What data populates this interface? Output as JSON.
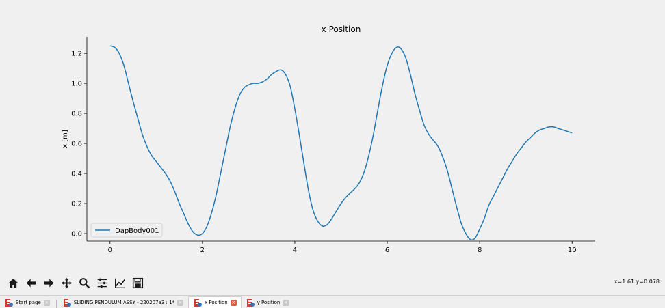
{
  "chart_data": {
    "type": "line",
    "title": "x Position",
    "xlabel": "",
    "ylabel": "x [m]",
    "xlim": [
      -0.5,
      10.5
    ],
    "ylim": [
      -0.05,
      1.31
    ],
    "xticks": [
      0,
      2,
      4,
      6,
      8,
      10
    ],
    "yticks": [
      0.0,
      0.2,
      0.4,
      0.6,
      0.8,
      1.0,
      1.2
    ],
    "ytick_labels": [
      "0.0",
      "0.2",
      "0.4",
      "0.6",
      "0.8",
      "1.0",
      "1.2"
    ],
    "grid": false,
    "legend_position": "bottom-left",
    "series": [
      {
        "name": "DapBody001",
        "color": "#1f77b4",
        "x": [
          0,
          0.1,
          0.2,
          0.3,
          0.4,
          0.5,
          0.6,
          0.7,
          0.8,
          0.9,
          1.0,
          1.1,
          1.2,
          1.3,
          1.4,
          1.5,
          1.6,
          1.7,
          1.8,
          1.9,
          2.0,
          2.1,
          2.2,
          2.3,
          2.4,
          2.5,
          2.6,
          2.7,
          2.8,
          2.9,
          3.0,
          3.1,
          3.2,
          3.3,
          3.4,
          3.5,
          3.6,
          3.7,
          3.8,
          3.9,
          4.0,
          4.1,
          4.2,
          4.3,
          4.4,
          4.5,
          4.6,
          4.7,
          4.8,
          4.9,
          5.0,
          5.1,
          5.2,
          5.3,
          5.4,
          5.5,
          5.6,
          5.7,
          5.8,
          5.9,
          6.0,
          6.1,
          6.2,
          6.3,
          6.4,
          6.5,
          6.6,
          6.7,
          6.8,
          6.9,
          7.0,
          7.1,
          7.2,
          7.3,
          7.4,
          7.5,
          7.6,
          7.7,
          7.8,
          7.9,
          8.0,
          8.1,
          8.2,
          8.3,
          8.4,
          8.5,
          8.6,
          8.7,
          8.8,
          8.9,
          9.0,
          9.1,
          9.2,
          9.3,
          9.4,
          9.5,
          9.6,
          9.7,
          9.8,
          9.9,
          10.0
        ],
        "y": [
          1.25,
          1.24,
          1.2,
          1.12,
          1.0,
          0.88,
          0.77,
          0.66,
          0.58,
          0.52,
          0.48,
          0.44,
          0.4,
          0.35,
          0.28,
          0.2,
          0.13,
          0.06,
          0.01,
          -0.01,
          0.0,
          0.05,
          0.14,
          0.26,
          0.41,
          0.56,
          0.71,
          0.83,
          0.92,
          0.97,
          0.99,
          1.0,
          1.0,
          1.01,
          1.03,
          1.06,
          1.08,
          1.09,
          1.06,
          0.98,
          0.83,
          0.65,
          0.46,
          0.28,
          0.15,
          0.08,
          0.05,
          0.06,
          0.1,
          0.15,
          0.2,
          0.24,
          0.27,
          0.3,
          0.34,
          0.41,
          0.52,
          0.66,
          0.83,
          0.99,
          1.12,
          1.2,
          1.24,
          1.23,
          1.17,
          1.06,
          0.93,
          0.82,
          0.72,
          0.66,
          0.62,
          0.58,
          0.51,
          0.42,
          0.3,
          0.18,
          0.07,
          0.0,
          -0.04,
          -0.03,
          0.03,
          0.1,
          0.19,
          0.25,
          0.31,
          0.37,
          0.43,
          0.48,
          0.53,
          0.57,
          0.61,
          0.64,
          0.67,
          0.69,
          0.7,
          0.71,
          0.71,
          0.7,
          0.69,
          0.68,
          0.67
        ]
      }
    ]
  },
  "toolbar": {
    "buttons": [
      {
        "name": "home-icon",
        "label": "Home"
      },
      {
        "name": "back-arrow-icon",
        "label": "Back"
      },
      {
        "name": "forward-arrow-icon",
        "label": "Forward"
      },
      {
        "name": "pan-icon",
        "label": "Pan"
      },
      {
        "name": "zoom-icon",
        "label": "Zoom"
      },
      {
        "name": "subplots-config-icon",
        "label": "Configure subplots"
      },
      {
        "name": "edit-axis-icon",
        "label": "Edit axis"
      },
      {
        "name": "save-icon",
        "label": "Save"
      }
    ]
  },
  "coordinates": "x=1.61 y=0.078",
  "tabs": [
    {
      "label": "Start page",
      "active": false
    },
    {
      "label": "SLIDING PENDULUM ASSY - 220207a3 : 1*",
      "active": false
    },
    {
      "label": "x Position",
      "active": true
    },
    {
      "label": "y Position",
      "active": false
    }
  ]
}
